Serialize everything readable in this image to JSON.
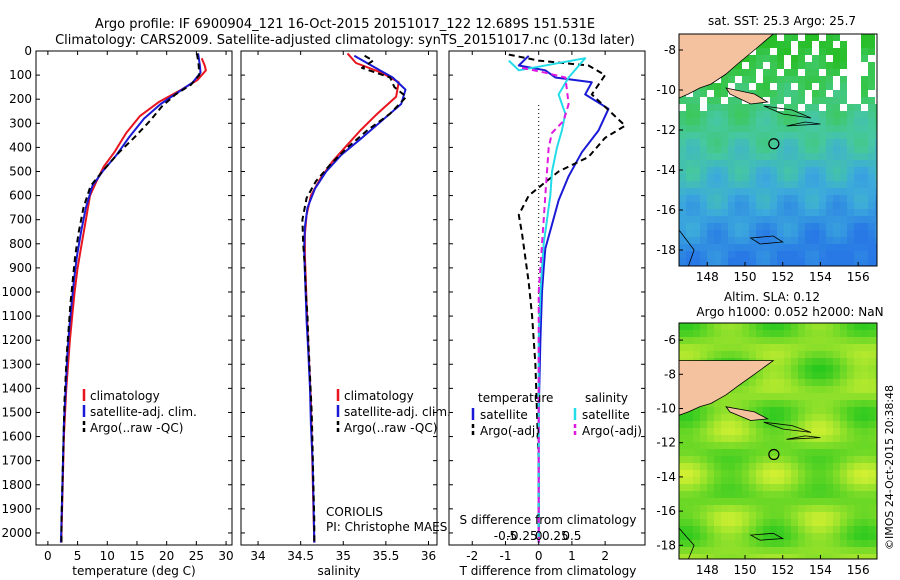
{
  "header": {
    "title_line1": "Argo profile: IF 6900904_121 16-Oct-2015 20151017_122 12.689S 151.531E",
    "title_line2": "Climatology: CARS2009. Satellite-adjusted climatology: synTS_20151017.nc (0.13d later)"
  },
  "chart_data": [
    {
      "type": "line",
      "xlabel": "temperature (deg C)",
      "ylabel": "",
      "xlim": [
        -2,
        31
      ],
      "ylim": [
        2050,
        0
      ],
      "xticks": [
        0,
        5,
        10,
        15,
        20,
        25,
        30
      ],
      "yticks": [
        0,
        100,
        200,
        300,
        400,
        500,
        600,
        700,
        800,
        900,
        1000,
        1100,
        1200,
        1300,
        1400,
        1500,
        1600,
        1700,
        1800,
        1900,
        2000
      ],
      "legend": [
        "climatology",
        "satellite-adj. clim.",
        "Argo(..raw -QC)"
      ],
      "series": [
        {
          "name": "climatology",
          "color": "#e8141e",
          "dash": "solid",
          "points": [
            [
              25.9,
              30
            ],
            [
              26.4,
              60
            ],
            [
              26.6,
              80
            ],
            [
              25.2,
              120
            ],
            [
              22.5,
              160
            ],
            [
              18.8,
              210
            ],
            [
              15.5,
              270
            ],
            [
              13.2,
              340
            ],
            [
              11.2,
              420
            ],
            [
              9.4,
              480
            ],
            [
              8.2,
              540
            ],
            [
              7.1,
              600
            ],
            [
              6.4,
              700
            ],
            [
              5.7,
              800
            ],
            [
              5.0,
              900
            ],
            [
              4.5,
              1000
            ],
            [
              4.1,
              1100
            ],
            [
              3.7,
              1200
            ],
            [
              3.4,
              1300
            ],
            [
              3.1,
              1400
            ],
            [
              2.9,
              1500
            ],
            [
              2.7,
              1600
            ],
            [
              2.6,
              1700
            ],
            [
              2.5,
              1800
            ],
            [
              2.4,
              1900
            ],
            [
              2.3,
              2000
            ],
            [
              2.3,
              2040
            ]
          ]
        },
        {
          "name": "satellite-adj. clim.",
          "color": "#1a1ad6",
          "dash": "solid",
          "points": [
            [
              25.3,
              10
            ],
            [
              25.6,
              60
            ],
            [
              25.7,
              90
            ],
            [
              24.4,
              130
            ],
            [
              22.0,
              170
            ],
            [
              19.0,
              220
            ],
            [
              16.2,
              280
            ],
            [
              13.6,
              360
            ],
            [
              11.6,
              430
            ],
            [
              9.2,
              500
            ],
            [
              7.5,
              560
            ],
            [
              6.4,
              650
            ],
            [
              5.6,
              750
            ],
            [
              4.9,
              850
            ],
            [
              4.4,
              950
            ],
            [
              4.0,
              1050
            ],
            [
              3.6,
              1150
            ],
            [
              3.3,
              1250
            ],
            [
              3.1,
              1350
            ],
            [
              2.9,
              1450
            ],
            [
              2.7,
              1550
            ],
            [
              2.6,
              1650
            ],
            [
              2.5,
              1750
            ],
            [
              2.4,
              1850
            ],
            [
              2.3,
              1950
            ],
            [
              2.2,
              2040
            ]
          ]
        },
        {
          "name": "Argo(..raw -QC)",
          "color": "#000000",
          "dash": "dashed",
          "points": [
            [
              25.1,
              10
            ],
            [
              25.4,
              60
            ],
            [
              25.5,
              100
            ],
            [
              24.1,
              140
            ],
            [
              21.5,
              180
            ],
            [
              19.2,
              230
            ],
            [
              17.2,
              290
            ],
            [
              14.5,
              360
            ],
            [
              12.0,
              420
            ],
            [
              9.5,
              490
            ],
            [
              7.2,
              560
            ],
            [
              6.0,
              650
            ],
            [
              5.2,
              750
            ],
            [
              4.6,
              850
            ],
            [
              4.2,
              950
            ],
            [
              3.8,
              1050
            ],
            [
              3.5,
              1150
            ],
            [
              3.2,
              1250
            ],
            [
              3.0,
              1350
            ],
            [
              2.8,
              1450
            ],
            [
              2.7,
              1550
            ],
            [
              2.6,
              1650
            ],
            [
              2.5,
              1750
            ],
            [
              2.4,
              1850
            ],
            [
              2.3,
              1950
            ],
            [
              2.3,
              2040
            ]
          ]
        }
      ]
    },
    {
      "type": "line",
      "xlabel": "salinity",
      "ylabel": "",
      "xlim": [
        33.8,
        36.1
      ],
      "ylim": [
        2050,
        0
      ],
      "xticks": [
        34,
        34.5,
        35,
        35.5,
        36
      ],
      "legend": [
        "climatology",
        "satellite-adj. clim.",
        "Argo(..raw -QC)"
      ],
      "annotation_lines": [
        "CORIOLIS",
        "PI: Christophe MAES"
      ],
      "series": [
        {
          "name": "climatology",
          "color": "#e8141e",
          "dash": "solid",
          "points": [
            [
              35.05,
              10
            ],
            [
              35.15,
              50
            ],
            [
              35.45,
              90
            ],
            [
              35.65,
              130
            ],
            [
              35.62,
              190
            ],
            [
              35.4,
              260
            ],
            [
              35.2,
              330
            ],
            [
              35.02,
              400
            ],
            [
              34.87,
              460
            ],
            [
              34.73,
              530
            ],
            [
              34.62,
              600
            ],
            [
              34.57,
              680
            ],
            [
              34.55,
              760
            ],
            [
              34.55,
              850
            ],
            [
              34.56,
              950
            ],
            [
              34.57,
              1050
            ],
            [
              34.58,
              1150
            ],
            [
              34.6,
              1300
            ],
            [
              34.62,
              1450
            ],
            [
              34.63,
              1600
            ],
            [
              34.64,
              1750
            ],
            [
              34.65,
              1900
            ],
            [
              34.66,
              2040
            ]
          ]
        },
        {
          "name": "satellite-adj. clim.",
          "color": "#1a1ad6",
          "dash": "solid",
          "points": [
            [
              35.13,
              20
            ],
            [
              35.38,
              70
            ],
            [
              35.58,
              110
            ],
            [
              35.73,
              160
            ],
            [
              35.68,
              220
            ],
            [
              35.45,
              290
            ],
            [
              35.22,
              360
            ],
            [
              34.98,
              430
            ],
            [
              34.8,
              500
            ],
            [
              34.67,
              570
            ],
            [
              34.58,
              650
            ],
            [
              34.55,
              730
            ],
            [
              34.54,
              820
            ],
            [
              34.55,
              920
            ],
            [
              34.56,
              1020
            ],
            [
              34.57,
              1120
            ],
            [
              34.59,
              1250
            ],
            [
              34.61,
              1400
            ],
            [
              34.62,
              1550
            ],
            [
              34.64,
              1700
            ],
            [
              34.65,
              1850
            ],
            [
              34.66,
              2040
            ]
          ]
        },
        {
          "name": "Argo(..raw -QC)",
          "color": "#000000",
          "dash": "dashed",
          "points": [
            [
              35.25,
              20
            ],
            [
              35.35,
              40
            ],
            [
              35.22,
              70
            ],
            [
              35.55,
              110
            ],
            [
              35.6,
              150
            ],
            [
              35.74,
              190
            ],
            [
              35.55,
              260
            ],
            [
              35.28,
              330
            ],
            [
              35.05,
              400
            ],
            [
              34.85,
              470
            ],
            [
              34.68,
              540
            ],
            [
              34.57,
              610
            ],
            [
              34.52,
              700
            ],
            [
              34.53,
              800
            ],
            [
              34.55,
              900
            ],
            [
              34.56,
              1000
            ],
            [
              34.58,
              1100
            ],
            [
              34.59,
              1200
            ],
            [
              34.61,
              1350
            ],
            [
              34.63,
              1500
            ],
            [
              34.64,
              1650
            ],
            [
              34.65,
              1800
            ],
            [
              34.66,
              1950
            ],
            [
              34.66,
              2040
            ]
          ]
        }
      ]
    },
    {
      "type": "line",
      "xlabel": "T difference from climatology",
      "xlabel_top": "S difference from climatology",
      "xlim": [
        -2.7,
        3.2
      ],
      "ylim": [
        2050,
        0
      ],
      "xticks": [
        -2,
        -1,
        0,
        1,
        2
      ],
      "xticks_s": [
        -0.5,
        -0.25,
        0,
        0.25,
        0.5
      ],
      "legend_temperature": "temperature",
      "legend_salinity": "salinity",
      "legend_satellite": "satellite",
      "legend_argo": "Argo(-adj)",
      "series": [
        {
          "name": "satellite",
          "group": "temperature",
          "color": "#1a1ad6",
          "dash": "solid",
          "points": [
            [
              -0.3,
              20
            ],
            [
              -0.6,
              60
            ],
            [
              0.2,
              80
            ],
            [
              0.5,
              110
            ],
            [
              1.6,
              130
            ],
            [
              1.4,
              180
            ],
            [
              2.1,
              240
            ],
            [
              1.8,
              330
            ],
            [
              1.3,
              420
            ],
            [
              0.9,
              520
            ],
            [
              0.6,
              620
            ],
            [
              0.4,
              720
            ],
            [
              0.2,
              820
            ],
            [
              0.15,
              900
            ],
            [
              0.1,
              1000
            ],
            [
              0.05,
              1200
            ],
            [
              0.0,
              1500
            ],
            [
              0.0,
              2040
            ]
          ]
        },
        {
          "name": "Argo(-adj)",
          "group": "temperature",
          "color": "#000000",
          "dash": "dashed",
          "points": [
            [
              -0.9,
              15
            ],
            [
              0.0,
              40
            ],
            [
              1.5,
              60
            ],
            [
              2.0,
              100
            ],
            [
              1.6,
              180
            ],
            [
              2.6,
              310
            ],
            [
              2.0,
              360
            ],
            [
              1.5,
              440
            ],
            [
              0.6,
              500
            ],
            [
              -0.3,
              600
            ],
            [
              -0.6,
              680
            ],
            [
              -0.5,
              760
            ],
            [
              -0.4,
              860
            ],
            [
              -0.3,
              960
            ],
            [
              -0.2,
              1100
            ],
            [
              -0.1,
              1300
            ],
            [
              -0.05,
              1500
            ],
            [
              0.0,
              1700
            ],
            [
              0.0,
              2040
            ]
          ]
        },
        {
          "name": "satellite",
          "group": "salinity",
          "color": "#22dce8",
          "dash": "solid",
          "points": [
            [
              -0.9,
              40
            ],
            [
              -0.6,
              80
            ],
            [
              1.4,
              30
            ],
            [
              0.9,
              110
            ],
            [
              0.6,
              180
            ],
            [
              0.8,
              260
            ],
            [
              0.7,
              330
            ],
            [
              0.55,
              400
            ],
            [
              0.4,
              500
            ],
            [
              0.35,
              600
            ],
            [
              0.25,
              700
            ],
            [
              0.15,
              800
            ],
            [
              0.1,
              900
            ],
            [
              0.05,
              1000
            ],
            [
              0.0,
              1200
            ],
            [
              0.0,
              1500
            ],
            [
              0.0,
              2040
            ]
          ]
        },
        {
          "name": "Argo(-adj)",
          "group": "salinity",
          "color": "#e018e0",
          "dash": "dashed",
          "points": [
            [
              -0.5,
              70
            ],
            [
              0.2,
              90
            ],
            [
              0.8,
              110
            ],
            [
              0.85,
              160
            ],
            [
              0.9,
              220
            ],
            [
              0.75,
              290
            ],
            [
              0.4,
              340
            ],
            [
              0.3,
              400
            ],
            [
              0.25,
              500
            ],
            [
              0.2,
              600
            ],
            [
              0.15,
              700
            ],
            [
              0.1,
              800
            ],
            [
              0.05,
              900
            ],
            [
              0.0,
              1000
            ],
            [
              0.0,
              1200
            ],
            [
              0.0,
              1500
            ],
            [
              0.0,
              2040
            ]
          ]
        }
      ]
    }
  ],
  "maps": [
    {
      "title": "sat. SST: 25.3  Argo: 25.7",
      "x_ticks": [
        "148",
        "150",
        "152",
        "154",
        "156"
      ],
      "y_ticks": [
        "-8",
        "-10",
        "-12",
        "-14",
        "-16",
        "-18"
      ],
      "xlim": [
        146.5,
        157
      ],
      "ylim": [
        -18.8,
        -7.2
      ],
      "argo_position": [
        151.531,
        -12.689
      ],
      "colormap": "sst"
    },
    {
      "title": "Altim. SLA: 0.12",
      "title2": "Argo h1000: 0.052  h2000: NaN",
      "x_ticks": [
        "148",
        "150",
        "152",
        "154",
        "156"
      ],
      "y_ticks": [
        "-6",
        "-8",
        "-10",
        "-12",
        "-14",
        "-16",
        "-18"
      ],
      "xlim": [
        146.5,
        157
      ],
      "ylim": [
        -18.8,
        -5.0
      ],
      "argo_position": [
        151.531,
        -12.689
      ],
      "colormap": "sla"
    }
  ],
  "watermark": "©IMOS 24-Oct-2015 20:38:48",
  "colors": {
    "land": "#f5c29f",
    "clim": "#e8141e",
    "sat": "#1a1ad6",
    "argo": "#000000",
    "sal_sat": "#22dce8",
    "sal_argo": "#e018e0"
  }
}
